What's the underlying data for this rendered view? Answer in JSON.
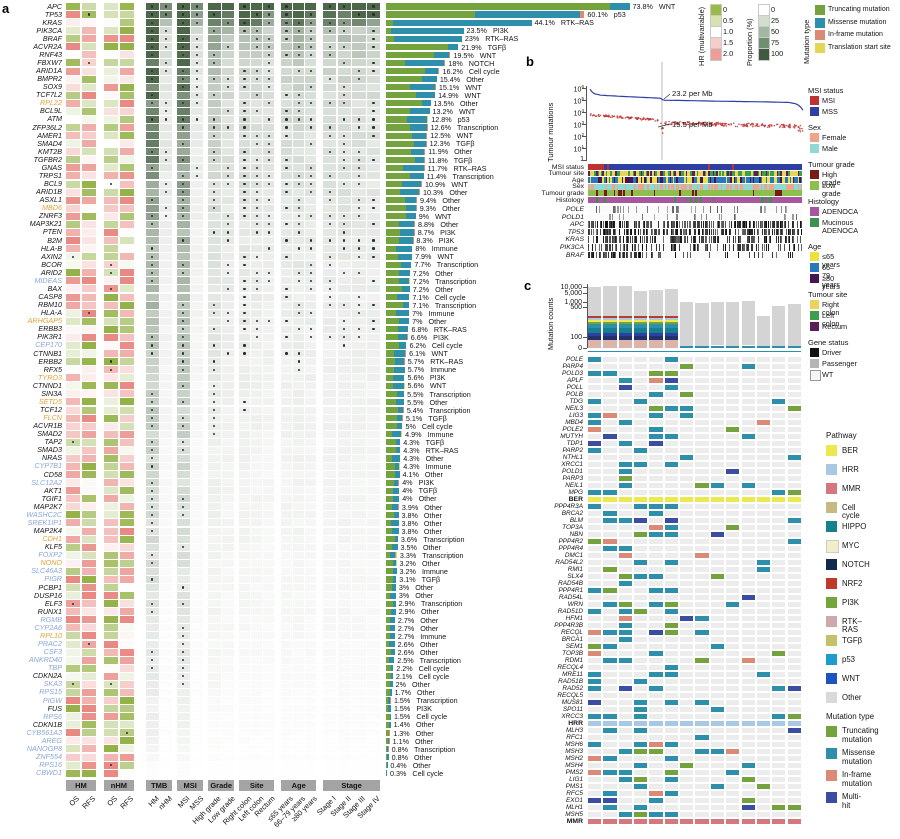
{
  "figure": {
    "panel_a_label": "a",
    "panel_b_label": "b",
    "panel_c_label": "c"
  },
  "panel_a": {
    "column_groups": [
      {
        "label": "HM",
        "cols": [
          "OS",
          "RFS"
        ]
      },
      {
        "label": "nHM",
        "cols": [
          "OS",
          "RFS"
        ]
      },
      {
        "label": "TMB",
        "cols": [
          "HM",
          "nHM"
        ]
      },
      {
        "label": "MSI",
        "cols": [
          "MSI",
          "MSS"
        ]
      },
      {
        "label": "Grade",
        "cols": [
          "High grade",
          "Low grade"
        ]
      },
      {
        "label": "Site",
        "cols": [
          "Right colon",
          "Left colon",
          "Rectum"
        ]
      },
      {
        "label": "Age",
        "cols": [
          "≤65 years",
          "66–79 years",
          "≥80 years"
        ]
      },
      {
        "label": "Stage",
        "cols": [
          "Stage I",
          "Stage II",
          "Stage III",
          "Stage IV"
        ]
      }
    ],
    "legend_hr": {
      "title": "HR (multivariable)",
      "labels": [
        "0",
        "0.5",
        "1.0",
        "1.5",
        "2.0"
      ],
      "colors": [
        "#9aba43",
        "#d6e3b0",
        "#ffffff",
        "#f7cdc7",
        "#ee9e97"
      ]
    },
    "legend_proportion": {
      "title": "Proportion (%)",
      "labels": [
        "0",
        "25",
        "50",
        "75",
        "100"
      ],
      "colors": [
        "#ffffff",
        "#d3ded0",
        "#a3b8a0",
        "#6f8f6f",
        "#3f5a40"
      ]
    },
    "legend_mutation": {
      "title": "Mutation type",
      "items": [
        {
          "label": "Truncating mutation",
          "color": "#74a23d"
        },
        {
          "label": "Missense mutation",
          "color": "#2d8fa9"
        },
        {
          "label": "In-frame mutation",
          "color": "#db8a76"
        },
        {
          "label": "Translation start site",
          "color": "#e5d755"
        }
      ]
    }
  },
  "panel_b": {
    "ylabel": "Tumour mutations",
    "yticks": [
      "10^6",
      "10^5",
      "10^4",
      "10^3",
      "10^2",
      "10^1",
      "1"
    ],
    "annotation_hm": "23.2 per Mb",
    "annotation_nhm": "15.5 per Mb",
    "tracks": [
      "MSI status",
      "Tumour site",
      "Age",
      "Sex",
      "Tumour grade",
      "Histology"
    ],
    "gene_tracks": [
      "POLE",
      "POLD1",
      "APC",
      "TP53",
      "KRAS",
      "PIK3CA",
      "BRAF"
    ],
    "legends": [
      {
        "title": "MSI status",
        "items": [
          {
            "label": "MSI",
            "color": "#bf3231"
          },
          {
            "label": "MSS",
            "color": "#2d3fa3"
          }
        ]
      },
      {
        "title": "Sex",
        "items": [
          {
            "label": "Female",
            "color": "#efa58c"
          },
          {
            "label": "Male",
            "color": "#8fd8d3"
          }
        ]
      },
      {
        "title": "Tumour grade",
        "items": [
          {
            "label": "High grade",
            "color": "#7a1a16"
          },
          {
            "label": "Low grade",
            "color": "#8cbf4c"
          }
        ]
      },
      {
        "title": "Histology",
        "items": [
          {
            "label": "ADENOCA",
            "color": "#a7569f"
          },
          {
            "label": "Mucinous\nADENOCA",
            "color": "#3f8f4f"
          }
        ]
      },
      {
        "title": "Age",
        "items": [
          {
            "label": "≤65 years",
            "color": "#ece23e"
          },
          {
            "label": "66–79 years",
            "color": "#2878be"
          },
          {
            "label": "≥80 years",
            "color": "#4a1454"
          }
        ]
      },
      {
        "title": "Tumour site",
        "items": [
          {
            "label": "Right colon",
            "color": "#ecd35c"
          },
          {
            "label": "Left colon",
            "color": "#3ba049"
          },
          {
            "label": "Rectum",
            "color": "#5c2058"
          }
        ]
      },
      {
        "title": "Gene status",
        "items": [
          {
            "label": "Driver",
            "color": "#111111"
          },
          {
            "label": "Passenger",
            "color": "#b5b5b5"
          },
          {
            "label": "WT",
            "color": "#f5f5f5"
          }
        ]
      }
    ]
  },
  "panel_c": {
    "ylabel": "Mutation counts",
    "yticks": [
      "10,000",
      "5,000",
      "1,000",
      "500",
      "100",
      "0"
    ],
    "rows": [
      "POLE",
      "PARP4",
      "POLD3",
      "APLF",
      "POLL",
      "POLB",
      "TDG",
      "NEIL3",
      "LIG3",
      "MBD4",
      "POLE2",
      "MUTYH",
      "TDP1",
      "PARP2",
      "NTHL1",
      "XRCC1",
      "POLD1",
      "PARP3",
      "NEIL1",
      "MPG",
      "BER",
      "PPP4R3A",
      "BRCA2",
      "BLM",
      "TOP3A",
      "NBN",
      "PPP4R2",
      "PPP4R4",
      "DMC1",
      "RAD54L2",
      "RMI1",
      "SLX4",
      "RAD54B",
      "PPP4R1",
      "RAD54L",
      "WRN",
      "RAD51D",
      "HFM1",
      "PPP4R3B",
      "RECQL",
      "BRCA1",
      "SEM1",
      "TOP3B",
      "RDM1",
      "RECQL4",
      "MRE11",
      "RAD51B",
      "RAD52",
      "RECQL5",
      "MUS81",
      "SPO11",
      "XRCC3",
      "HRR",
      "MLH3",
      "RFC1",
      "MSH6",
      "MSH3",
      "MSH2",
      "MSH4",
      "PMS2",
      "LIG1",
      "PMS1",
      "RFC5",
      "EXO1",
      "MLH1",
      "MSH5",
      "MMR"
    ],
    "summary_rows": {
      "BER": "#ece94f",
      "HRR": "#a8c8e4",
      "MMR": "#d4787d"
    },
    "legend_pathway": {
      "title": "Pathway",
      "items": [
        {
          "label": "BER",
          "color": "#ece94f"
        },
        {
          "label": "HRR",
          "color": "#a8c8e4"
        },
        {
          "label": "MMR",
          "color": "#d4787d"
        },
        {
          "label": "Cell cycle",
          "color": "#c7b97f"
        },
        {
          "label": "HIPPO",
          "color": "#17808d"
        },
        {
          "label": "MYC",
          "color": "#f2eecb"
        },
        {
          "label": "NOTCH",
          "color": "#12284e"
        },
        {
          "label": "NRF2",
          "color": "#c0392b"
        },
        {
          "label": "PI3K",
          "color": "#72a53c"
        },
        {
          "label": "RTK–RAS",
          "color": "#cfa8ad"
        },
        {
          "label": "TGFβ",
          "color": "#c3c16a"
        },
        {
          "label": "p53",
          "color": "#1f9bcc"
        },
        {
          "label": "WNT",
          "color": "#1c53c0"
        },
        {
          "label": "Other",
          "color": "#d9d9d9"
        }
      ]
    },
    "legend_mutation": {
      "title": "Mutation type",
      "items": [
        {
          "label": "Truncating\nmutation",
          "color": "#74a23d"
        },
        {
          "label": "Missense\nmutation",
          "color": "#2d8fa9"
        },
        {
          "label": "In-frame\nmutation",
          "color": "#db8a76"
        },
        {
          "label": "Multi-hit",
          "color": "#3a4da0"
        }
      ]
    }
  },
  "chart_data": [
    {
      "type": "bar",
      "title": "Driver gene alteration frequency (panel a)",
      "orientation": "horizontal",
      "unit": "%",
      "categories": [
        "APC",
        "TP53",
        "KRAS",
        "PIK3CA",
        "BRAF",
        "ACVR2A",
        "RNF43",
        "FBXW7",
        "ARID1A",
        "BMPR2",
        "SOX9",
        "TCF7L2",
        "RPL22",
        "BCL9L",
        "ATM",
        "ZFP36L2",
        "AMER1",
        "SMAD4",
        "KMT2B",
        "TGFBR2",
        "GNAS",
        "TRPS1",
        "BCL9",
        "ARID1B",
        "ASXL1",
        "MBD6",
        "ZNRF3",
        "MAP3K21",
        "PTEN",
        "B2M",
        "HLA-B",
        "AXIN2",
        "BCOR",
        "ARID2",
        "MIDEAS",
        "BAX",
        "CASP8",
        "RBM10",
        "HLA-A",
        "ARHGAP5",
        "ERBB3",
        "PIK3R1",
        "CEP170",
        "CTNNB1",
        "ERBB2",
        "RFX5",
        "TYRO3",
        "CTNND1",
        "SIN3A",
        "SETD5",
        "TCF12",
        "FLCN",
        "ACVR1B",
        "SMAD2",
        "TAP2",
        "SMAD3",
        "NRAS",
        "CYP7B1",
        "CD58",
        "SLC12A2",
        "AKT1",
        "TGIF1",
        "MAP2K7",
        "WASHC2C",
        "SREK1IP1",
        "MAP2K4",
        "CDH1",
        "KLF5",
        "FOXP2",
        "NONO",
        "SLC46A3",
        "PIGR",
        "PCBP1",
        "DUSP16",
        "ELF3",
        "RUNX1",
        "RGMB",
        "CYP2A6",
        "RPL10",
        "PRAC2",
        "CSF3",
        "ANKRD40",
        "TBP",
        "CDKN2A",
        "SKA3",
        "RPS15",
        "PIGW",
        "FUS",
        "RPS6",
        "CDKN1B",
        "CYB561A3",
        "AREG",
        "NANOGP8",
        "ZNF554",
        "RPS16",
        "CBWD1"
      ],
      "values": [
        73.8,
        60.1,
        44.1,
        23.5,
        23,
        21.9,
        19.5,
        18,
        16.2,
        15.4,
        15.1,
        14.9,
        13.5,
        13.2,
        12.8,
        12.6,
        12.5,
        12.3,
        11.9,
        11.8,
        11.7,
        11.4,
        10.9,
        10.3,
        9.4,
        9.3,
        9,
        8.8,
        8.7,
        8.3,
        8,
        7.9,
        7.7,
        7.2,
        7.2,
        7.2,
        7.1,
        7.1,
        7,
        7,
        6.8,
        6.6,
        6.2,
        6.1,
        5.7,
        5.7,
        5.6,
        5.6,
        5.5,
        5.5,
        5.4,
        5.1,
        5,
        4.9,
        4.3,
        4.3,
        4.3,
        4.3,
        4.1,
        4,
        4,
        4,
        3.9,
        3.8,
        3.8,
        3.8,
        3.6,
        3.5,
        3.3,
        3.2,
        3.2,
        3.1,
        3,
        3,
        2.9,
        2.9,
        2.7,
        2.7,
        2.7,
        2.6,
        2.6,
        2.5,
        2.2,
        2.1,
        2,
        1.7,
        1.5,
        1.5,
        1.5,
        1.4,
        1.3,
        1.1,
        0.8,
        0.8,
        0.4,
        0.3
      ],
      "pathways": [
        "WNT",
        "p53",
        "RTK–RAS",
        "PI3K",
        "RTK–RAS",
        "TGFβ",
        "WNT",
        "NOTCH",
        "Cell cycle",
        "Other",
        "WNT",
        "WNT",
        "Other",
        "WNT",
        "p53",
        "Transcription",
        "WNT",
        "TGFβ",
        "Other",
        "TGFβ",
        "RTK–RAS",
        "Transcription",
        "WNT",
        "Other",
        "Other",
        "Other",
        "WNT",
        "Other",
        "PI3K",
        "PI3K",
        "Immune",
        "WNT",
        "Transcription",
        "Other",
        "Transcription",
        "Other",
        "Cell cycle",
        "Transcription",
        "Immune",
        "Other",
        "RTK–RAS",
        "PI3K",
        "Cell cycle",
        "WNT",
        "RTK–RAS",
        "Immune",
        "PI3K",
        "WNT",
        "Transcription",
        "Other",
        "Transcription",
        "TGFβ",
        "Cell cycle",
        "Immune",
        "TGFβ",
        "RTK–RAS",
        "Other",
        "Immune",
        "Other",
        "PI3K",
        "TGFβ",
        "Other",
        "Other",
        "Other",
        "Other",
        "Other",
        "Transcription",
        "Other",
        "Transcription",
        "Other",
        "Immune",
        "TGFβ",
        "Other",
        "Other",
        "Transcription",
        "Other",
        "Other",
        "Other",
        "Immune",
        "Other",
        "Other",
        "Transcription",
        "Cell cycle",
        "Cell cycle",
        "Other",
        "Other",
        "Transcription",
        "PI3K",
        "Cell cycle",
        "Other",
        "Other",
        "Other",
        "Transcription",
        "Other",
        "Other",
        "Cell cycle"
      ],
      "label_colors": "kkkkkkkkkkkkokkkkkkkkkkkkokkkkkkkkbkkkkokkbkkkokkokokkkkkbkbkkkbbkokbobbkkkkbbobbbbkbbbkbkbbbbbb",
      "legend": [
        "Truncating mutation",
        "Missense mutation",
        "In-frame mutation",
        "Translation start site"
      ]
    },
    {
      "type": "scatter",
      "title": "Tumour mutation burden per sample (panel b)",
      "ylabel": "Tumour mutations",
      "yscale": "log",
      "ylim_log10": [
        0,
        6
      ],
      "annotations": [
        {
          "text": "23.2 per Mb",
          "group": "hypermutated"
        },
        {
          "text": "15.5 per Mb",
          "group": "non-hypermutated"
        }
      ],
      "series": [
        {
          "name": "MSS",
          "color": "#2d3fa3",
          "style": "line"
        },
        {
          "name": "MSI",
          "color": "#bf3231",
          "style": "points"
        }
      ]
    },
    {
      "type": "bar",
      "title": "Mutation counts per sample (panel c)",
      "ylabel": "Mutation counts",
      "yticks": [
        10000,
        5000,
        1000,
        500,
        100,
        0
      ],
      "values": [
        10000,
        11000,
        10500,
        6500,
        7500,
        8200,
        1000,
        950,
        1100,
        1000,
        1400,
        380,
        650,
        800
      ],
      "legend": [
        "Driver",
        "Passenger",
        "WT"
      ]
    }
  ]
}
